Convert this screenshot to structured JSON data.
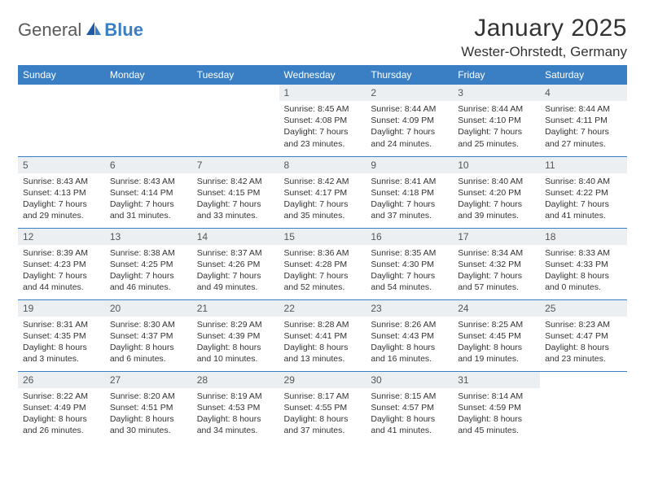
{
  "brand": {
    "general": "General",
    "blue": "Blue"
  },
  "title": "January 2025",
  "location": "Wester-Ohrstedt, Germany",
  "colors": {
    "header_bg": "#3a7fc4",
    "header_fg": "#ffffff",
    "daynum_bg": "#eceff1",
    "text": "#333333",
    "rule": "#3a7fc4"
  },
  "typography": {
    "title_fontsize": 30,
    "location_fontsize": 17,
    "weekday_fontsize": 12,
    "daynum_fontsize": 12,
    "body_fontsize": 10.5
  },
  "weekdays": [
    "Sunday",
    "Monday",
    "Tuesday",
    "Wednesday",
    "Thursday",
    "Friday",
    "Saturday"
  ],
  "weeks": [
    [
      null,
      null,
      null,
      {
        "n": "1",
        "sunrise": "Sunrise: 8:45 AM",
        "sunset": "Sunset: 4:08 PM",
        "day1": "Daylight: 7 hours",
        "day2": "and 23 minutes."
      },
      {
        "n": "2",
        "sunrise": "Sunrise: 8:44 AM",
        "sunset": "Sunset: 4:09 PM",
        "day1": "Daylight: 7 hours",
        "day2": "and 24 minutes."
      },
      {
        "n": "3",
        "sunrise": "Sunrise: 8:44 AM",
        "sunset": "Sunset: 4:10 PM",
        "day1": "Daylight: 7 hours",
        "day2": "and 25 minutes."
      },
      {
        "n": "4",
        "sunrise": "Sunrise: 8:44 AM",
        "sunset": "Sunset: 4:11 PM",
        "day1": "Daylight: 7 hours",
        "day2": "and 27 minutes."
      }
    ],
    [
      {
        "n": "5",
        "sunrise": "Sunrise: 8:43 AM",
        "sunset": "Sunset: 4:13 PM",
        "day1": "Daylight: 7 hours",
        "day2": "and 29 minutes."
      },
      {
        "n": "6",
        "sunrise": "Sunrise: 8:43 AM",
        "sunset": "Sunset: 4:14 PM",
        "day1": "Daylight: 7 hours",
        "day2": "and 31 minutes."
      },
      {
        "n": "7",
        "sunrise": "Sunrise: 8:42 AM",
        "sunset": "Sunset: 4:15 PM",
        "day1": "Daylight: 7 hours",
        "day2": "and 33 minutes."
      },
      {
        "n": "8",
        "sunrise": "Sunrise: 8:42 AM",
        "sunset": "Sunset: 4:17 PM",
        "day1": "Daylight: 7 hours",
        "day2": "and 35 minutes."
      },
      {
        "n": "9",
        "sunrise": "Sunrise: 8:41 AM",
        "sunset": "Sunset: 4:18 PM",
        "day1": "Daylight: 7 hours",
        "day2": "and 37 minutes."
      },
      {
        "n": "10",
        "sunrise": "Sunrise: 8:40 AM",
        "sunset": "Sunset: 4:20 PM",
        "day1": "Daylight: 7 hours",
        "day2": "and 39 minutes."
      },
      {
        "n": "11",
        "sunrise": "Sunrise: 8:40 AM",
        "sunset": "Sunset: 4:22 PM",
        "day1": "Daylight: 7 hours",
        "day2": "and 41 minutes."
      }
    ],
    [
      {
        "n": "12",
        "sunrise": "Sunrise: 8:39 AM",
        "sunset": "Sunset: 4:23 PM",
        "day1": "Daylight: 7 hours",
        "day2": "and 44 minutes."
      },
      {
        "n": "13",
        "sunrise": "Sunrise: 8:38 AM",
        "sunset": "Sunset: 4:25 PM",
        "day1": "Daylight: 7 hours",
        "day2": "and 46 minutes."
      },
      {
        "n": "14",
        "sunrise": "Sunrise: 8:37 AM",
        "sunset": "Sunset: 4:26 PM",
        "day1": "Daylight: 7 hours",
        "day2": "and 49 minutes."
      },
      {
        "n": "15",
        "sunrise": "Sunrise: 8:36 AM",
        "sunset": "Sunset: 4:28 PM",
        "day1": "Daylight: 7 hours",
        "day2": "and 52 minutes."
      },
      {
        "n": "16",
        "sunrise": "Sunrise: 8:35 AM",
        "sunset": "Sunset: 4:30 PM",
        "day1": "Daylight: 7 hours",
        "day2": "and 54 minutes."
      },
      {
        "n": "17",
        "sunrise": "Sunrise: 8:34 AM",
        "sunset": "Sunset: 4:32 PM",
        "day1": "Daylight: 7 hours",
        "day2": "and 57 minutes."
      },
      {
        "n": "18",
        "sunrise": "Sunrise: 8:33 AM",
        "sunset": "Sunset: 4:33 PM",
        "day1": "Daylight: 8 hours",
        "day2": "and 0 minutes."
      }
    ],
    [
      {
        "n": "19",
        "sunrise": "Sunrise: 8:31 AM",
        "sunset": "Sunset: 4:35 PM",
        "day1": "Daylight: 8 hours",
        "day2": "and 3 minutes."
      },
      {
        "n": "20",
        "sunrise": "Sunrise: 8:30 AM",
        "sunset": "Sunset: 4:37 PM",
        "day1": "Daylight: 8 hours",
        "day2": "and 6 minutes."
      },
      {
        "n": "21",
        "sunrise": "Sunrise: 8:29 AM",
        "sunset": "Sunset: 4:39 PM",
        "day1": "Daylight: 8 hours",
        "day2": "and 10 minutes."
      },
      {
        "n": "22",
        "sunrise": "Sunrise: 8:28 AM",
        "sunset": "Sunset: 4:41 PM",
        "day1": "Daylight: 8 hours",
        "day2": "and 13 minutes."
      },
      {
        "n": "23",
        "sunrise": "Sunrise: 8:26 AM",
        "sunset": "Sunset: 4:43 PM",
        "day1": "Daylight: 8 hours",
        "day2": "and 16 minutes."
      },
      {
        "n": "24",
        "sunrise": "Sunrise: 8:25 AM",
        "sunset": "Sunset: 4:45 PM",
        "day1": "Daylight: 8 hours",
        "day2": "and 19 minutes."
      },
      {
        "n": "25",
        "sunrise": "Sunrise: 8:23 AM",
        "sunset": "Sunset: 4:47 PM",
        "day1": "Daylight: 8 hours",
        "day2": "and 23 minutes."
      }
    ],
    [
      {
        "n": "26",
        "sunrise": "Sunrise: 8:22 AM",
        "sunset": "Sunset: 4:49 PM",
        "day1": "Daylight: 8 hours",
        "day2": "and 26 minutes."
      },
      {
        "n": "27",
        "sunrise": "Sunrise: 8:20 AM",
        "sunset": "Sunset: 4:51 PM",
        "day1": "Daylight: 8 hours",
        "day2": "and 30 minutes."
      },
      {
        "n": "28",
        "sunrise": "Sunrise: 8:19 AM",
        "sunset": "Sunset: 4:53 PM",
        "day1": "Daylight: 8 hours",
        "day2": "and 34 minutes."
      },
      {
        "n": "29",
        "sunrise": "Sunrise: 8:17 AM",
        "sunset": "Sunset: 4:55 PM",
        "day1": "Daylight: 8 hours",
        "day2": "and 37 minutes."
      },
      {
        "n": "30",
        "sunrise": "Sunrise: 8:15 AM",
        "sunset": "Sunset: 4:57 PM",
        "day1": "Daylight: 8 hours",
        "day2": "and 41 minutes."
      },
      {
        "n": "31",
        "sunrise": "Sunrise: 8:14 AM",
        "sunset": "Sunset: 4:59 PM",
        "day1": "Daylight: 8 hours",
        "day2": "and 45 minutes."
      },
      null
    ]
  ]
}
